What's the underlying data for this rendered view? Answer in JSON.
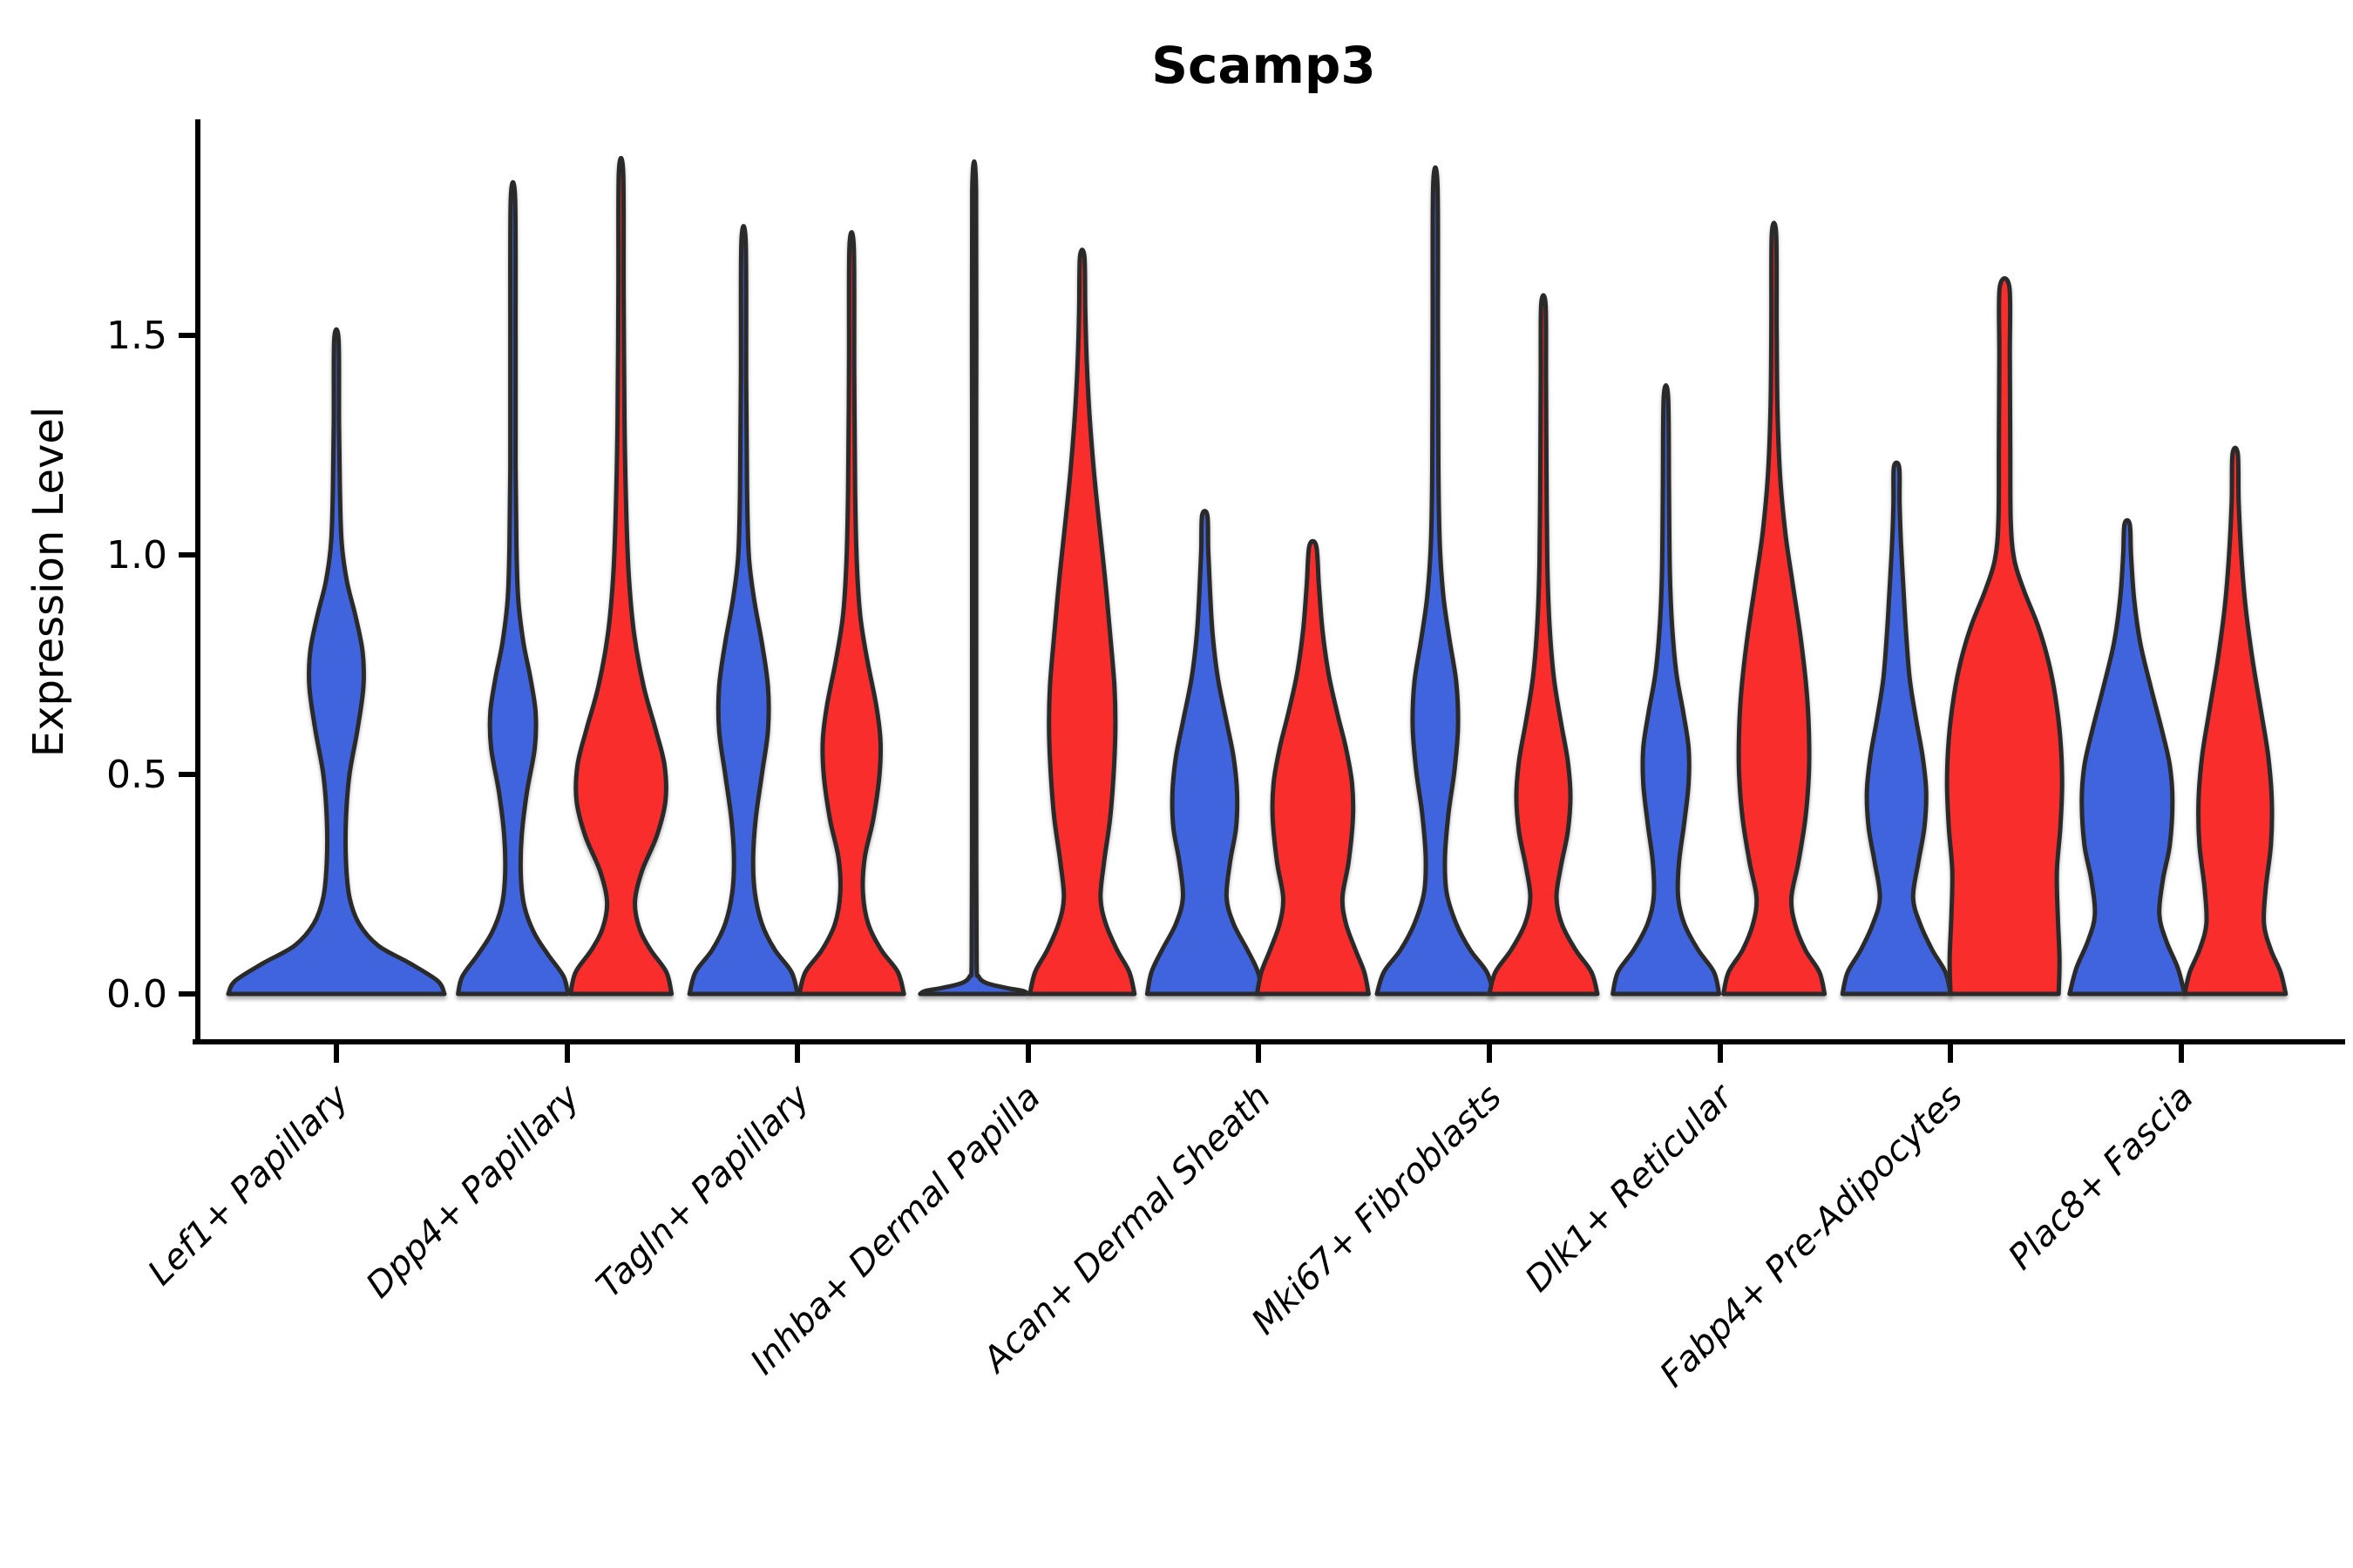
{
  "chart_data": {
    "type": "violin",
    "title": "Scamp3",
    "ylabel": "Expression Level",
    "xlabel": "",
    "ytick_labels": [
      "0.0",
      "0.5",
      "1.0",
      "1.5"
    ],
    "ytick_values": [
      0.0,
      0.5,
      1.0,
      1.5
    ],
    "ylim": [
      -0.11,
      1.99
    ],
    "grid": false,
    "legend": "none",
    "categories": [
      "Lef1+ Papillary",
      "Dpp4+ Papillary",
      "Tagln+ Papillary",
      "Inhba+ Dermal Papilla",
      "Acan+ Dermal Sheath",
      "Mki67+ Fibroblasts",
      "Dlk1+ Reticular",
      "Fabp4+ Pre-Adipocytes",
      "Plac8+ Fascia"
    ],
    "colors": {
      "blue": "#4064DE",
      "red": "#FA2D2D",
      "outline": "#2A2A2A",
      "axis": "#000000"
    },
    "violins": [
      {
        "category": "Lef1+ Papillary",
        "group_index": 0,
        "side": "center",
        "color": "blue",
        "max_expression": 1.49,
        "profile": [
          [
            0,
            124
          ],
          [
            0.03,
            116
          ],
          [
            0.07,
            84
          ],
          [
            0.11,
            48
          ],
          [
            0.16,
            26
          ],
          [
            0.22,
            15
          ],
          [
            0.3,
            11
          ],
          [
            0.4,
            11
          ],
          [
            0.5,
            15
          ],
          [
            0.6,
            24
          ],
          [
            0.7,
            31
          ],
          [
            0.78,
            30
          ],
          [
            0.86,
            22
          ],
          [
            0.94,
            12
          ],
          [
            1.03,
            6
          ],
          [
            1.15,
            4
          ],
          [
            1.3,
            3
          ],
          [
            1.49,
            2.5
          ]
        ]
      },
      {
        "category": "Dpp4+ Papillary",
        "group_index": 1,
        "side": "left",
        "color": "blue",
        "max_expression": 1.81,
        "profile": [
          [
            0,
            63
          ],
          [
            0.04,
            58
          ],
          [
            0.09,
            40
          ],
          [
            0.14,
            24
          ],
          [
            0.2,
            13
          ],
          [
            0.27,
            9
          ],
          [
            0.36,
            10
          ],
          [
            0.46,
            16
          ],
          [
            0.56,
            25
          ],
          [
            0.64,
            26
          ],
          [
            0.72,
            20
          ],
          [
            0.8,
            12
          ],
          [
            0.9,
            6
          ],
          [
            1.02,
            4
          ],
          [
            1.2,
            3
          ],
          [
            1.5,
            3
          ],
          [
            1.81,
            2.5
          ]
        ]
      },
      {
        "category": "Dpp4+ Papillary",
        "group_index": 1,
        "side": "right",
        "color": "red",
        "max_expression": 1.87,
        "profile": [
          [
            0,
            58
          ],
          [
            0.05,
            52
          ],
          [
            0.1,
            34
          ],
          [
            0.15,
            21
          ],
          [
            0.21,
            16
          ],
          [
            0.28,
            24
          ],
          [
            0.36,
            41
          ],
          [
            0.44,
            51
          ],
          [
            0.52,
            50
          ],
          [
            0.6,
            40
          ],
          [
            0.7,
            26
          ],
          [
            0.82,
            15
          ],
          [
            0.95,
            9
          ],
          [
            1.1,
            6
          ],
          [
            1.3,
            4
          ],
          [
            1.6,
            3
          ],
          [
            1.87,
            2.5
          ]
        ]
      },
      {
        "category": "Tagln+ Papillary",
        "group_index": 2,
        "side": "left",
        "color": "blue",
        "max_expression": 1.71,
        "profile": [
          [
            0,
            62
          ],
          [
            0.05,
            55
          ],
          [
            0.1,
            36
          ],
          [
            0.16,
            21
          ],
          [
            0.23,
            13
          ],
          [
            0.31,
            11
          ],
          [
            0.4,
            14
          ],
          [
            0.5,
            21
          ],
          [
            0.6,
            28
          ],
          [
            0.7,
            28
          ],
          [
            0.8,
            21
          ],
          [
            0.9,
            12
          ],
          [
            1.0,
            6
          ],
          [
            1.15,
            4
          ],
          [
            1.4,
            3
          ],
          [
            1.71,
            2.5
          ]
        ]
      },
      {
        "category": "Tagln+ Papillary",
        "group_index": 2,
        "side": "right",
        "color": "red",
        "max_expression": 1.7,
        "profile": [
          [
            0,
            60
          ],
          [
            0.05,
            53
          ],
          [
            0.1,
            34
          ],
          [
            0.16,
            19
          ],
          [
            0.23,
            13
          ],
          [
            0.31,
            15
          ],
          [
            0.4,
            25
          ],
          [
            0.5,
            32
          ],
          [
            0.58,
            33
          ],
          [
            0.66,
            28
          ],
          [
            0.76,
            18
          ],
          [
            0.86,
            10
          ],
          [
            0.98,
            6
          ],
          [
            1.15,
            4
          ],
          [
            1.42,
            3
          ],
          [
            1.7,
            2.5
          ]
        ]
      },
      {
        "category": "Inhba+ Dermal Papilla",
        "group_index": 3,
        "side": "left",
        "color": "blue",
        "max_expression": 1.83,
        "profile": [
          [
            0,
            62
          ],
          [
            0.007,
            56
          ],
          [
            0.014,
            36
          ],
          [
            0.025,
            14
          ],
          [
            0.04,
            5
          ],
          [
            0.07,
            2.8
          ],
          [
            0.3,
            2.4
          ],
          [
            0.8,
            2.3
          ],
          [
            1.3,
            2.3
          ],
          [
            1.83,
            2.2
          ]
        ]
      },
      {
        "category": "Inhba+ Dermal Papilla",
        "group_index": 3,
        "side": "right",
        "color": "red",
        "max_expression": 1.68,
        "profile": [
          [
            0,
            60
          ],
          [
            0.05,
            54
          ],
          [
            0.1,
            40
          ],
          [
            0.16,
            27
          ],
          [
            0.22,
            21
          ],
          [
            0.3,
            25
          ],
          [
            0.4,
            32
          ],
          [
            0.5,
            36
          ],
          [
            0.6,
            38
          ],
          [
            0.7,
            37
          ],
          [
            0.82,
            32
          ],
          [
            0.95,
            26
          ],
          [
            1.08,
            19
          ],
          [
            1.2,
            13
          ],
          [
            1.33,
            8
          ],
          [
            1.45,
            5
          ],
          [
            1.56,
            3.5
          ],
          [
            1.68,
            2.5
          ]
        ]
      },
      {
        "category": "Acan+ Dermal Sheath",
        "group_index": 4,
        "side": "left",
        "color": "blue",
        "max_expression": 1.09,
        "profile": [
          [
            0,
            66
          ],
          [
            0.05,
            61
          ],
          [
            0.1,
            49
          ],
          [
            0.16,
            33
          ],
          [
            0.22,
            25
          ],
          [
            0.3,
            29
          ],
          [
            0.38,
            36
          ],
          [
            0.46,
            37
          ],
          [
            0.54,
            33
          ],
          [
            0.62,
            25
          ],
          [
            0.72,
            15
          ],
          [
            0.82,
            9
          ],
          [
            0.92,
            6
          ],
          [
            1.01,
            4
          ],
          [
            1.09,
            3
          ]
        ]
      },
      {
        "category": "Acan+ Dermal Sheath",
        "group_index": 4,
        "side": "right",
        "color": "red",
        "max_expression": 1.02,
        "profile": [
          [
            0,
            64
          ],
          [
            0.05,
            59
          ],
          [
            0.1,
            49
          ],
          [
            0.16,
            38
          ],
          [
            0.22,
            34
          ],
          [
            0.3,
            41
          ],
          [
            0.4,
            46
          ],
          [
            0.48,
            45
          ],
          [
            0.56,
            38
          ],
          [
            0.64,
            28
          ],
          [
            0.73,
            18
          ],
          [
            0.83,
            11
          ],
          [
            0.93,
            7
          ],
          [
            1.02,
            4
          ]
        ]
      },
      {
        "category": "Mki67+ Fibroblasts",
        "group_index": 5,
        "side": "left",
        "color": "blue",
        "max_expression": 1.84,
        "profile": [
          [
            0,
            67
          ],
          [
            0.05,
            59
          ],
          [
            0.1,
            40
          ],
          [
            0.16,
            24
          ],
          [
            0.23,
            13
          ],
          [
            0.31,
            11
          ],
          [
            0.41,
            15
          ],
          [
            0.51,
            22
          ],
          [
            0.61,
            26
          ],
          [
            0.71,
            24
          ],
          [
            0.81,
            16
          ],
          [
            0.91,
            9
          ],
          [
            1.03,
            5
          ],
          [
            1.2,
            3.5
          ],
          [
            1.5,
            3
          ],
          [
            1.84,
            2.5
          ]
        ]
      },
      {
        "category": "Mki67+ Fibroblasts",
        "group_index": 5,
        "side": "right",
        "color": "red",
        "max_expression": 1.57,
        "profile": [
          [
            0,
            62
          ],
          [
            0.05,
            55
          ],
          [
            0.1,
            37
          ],
          [
            0.16,
            21
          ],
          [
            0.22,
            15
          ],
          [
            0.29,
            20
          ],
          [
            0.37,
            28
          ],
          [
            0.45,
            31
          ],
          [
            0.53,
            28
          ],
          [
            0.62,
            20
          ],
          [
            0.72,
            12
          ],
          [
            0.84,
            7
          ],
          [
            0.98,
            4.5
          ],
          [
            1.2,
            3.5
          ],
          [
            1.4,
            3
          ],
          [
            1.57,
            2.5
          ]
        ]
      },
      {
        "category": "Dlk1+ Reticular",
        "group_index": 6,
        "side": "left",
        "color": "blue",
        "max_expression": 1.36,
        "profile": [
          [
            0,
            61
          ],
          [
            0.05,
            55
          ],
          [
            0.1,
            37
          ],
          [
            0.16,
            21
          ],
          [
            0.22,
            14
          ],
          [
            0.3,
            15
          ],
          [
            0.39,
            21
          ],
          [
            0.48,
            26
          ],
          [
            0.56,
            26
          ],
          [
            0.64,
            20
          ],
          [
            0.73,
            12
          ],
          [
            0.84,
            7
          ],
          [
            0.96,
            4.5
          ],
          [
            1.15,
            3.5
          ],
          [
            1.36,
            2.5
          ]
        ]
      },
      {
        "category": "Dlk1+ Reticular",
        "group_index": 6,
        "side": "right",
        "color": "red",
        "max_expression": 1.73,
        "profile": [
          [
            0,
            58
          ],
          [
            0.05,
            52
          ],
          [
            0.1,
            36
          ],
          [
            0.16,
            24
          ],
          [
            0.22,
            20
          ],
          [
            0.3,
            28
          ],
          [
            0.4,
            36
          ],
          [
            0.5,
            40
          ],
          [
            0.6,
            40
          ],
          [
            0.7,
            37
          ],
          [
            0.82,
            30
          ],
          [
            0.94,
            21
          ],
          [
            1.05,
            13
          ],
          [
            1.18,
            7
          ],
          [
            1.33,
            4
          ],
          [
            1.52,
            3
          ],
          [
            1.73,
            2.5
          ]
        ]
      },
      {
        "category": "Fabp4+ Pre-Adipocytes",
        "group_index": 7,
        "side": "left",
        "color": "blue",
        "max_expression": 1.2,
        "profile": [
          [
            0,
            62
          ],
          [
            0.05,
            56
          ],
          [
            0.1,
            41
          ],
          [
            0.16,
            27
          ],
          [
            0.22,
            19
          ],
          [
            0.3,
            25
          ],
          [
            0.38,
            32
          ],
          [
            0.46,
            34
          ],
          [
            0.54,
            30
          ],
          [
            0.63,
            22
          ],
          [
            0.72,
            15
          ],
          [
            0.82,
            11
          ],
          [
            0.92,
            8
          ],
          [
            1.03,
            5
          ],
          [
            1.12,
            3.5
          ],
          [
            1.2,
            3
          ]
        ]
      },
      {
        "category": "Fabp4+ Pre-Adipocytes",
        "group_index": 7,
        "side": "right",
        "color": "red",
        "max_expression": 1.61,
        "profile": [
          [
            0,
            62
          ],
          [
            0.08,
            63
          ],
          [
            0.18,
            61
          ],
          [
            0.28,
            60
          ],
          [
            0.38,
            64
          ],
          [
            0.48,
            66
          ],
          [
            0.58,
            64
          ],
          [
            0.68,
            58
          ],
          [
            0.76,
            50
          ],
          [
            0.84,
            38
          ],
          [
            0.92,
            22
          ],
          [
            0.99,
            11
          ],
          [
            1.08,
            7
          ],
          [
            1.25,
            6.5
          ],
          [
            1.45,
            6
          ],
          [
            1.61,
            5.5
          ]
        ]
      },
      {
        "category": "Plac8+ Fascia",
        "group_index": 8,
        "side": "left",
        "color": "blue",
        "max_expression": 1.07,
        "profile": [
          [
            0,
            66
          ],
          [
            0.06,
            58
          ],
          [
            0.12,
            45
          ],
          [
            0.18,
            37
          ],
          [
            0.26,
            41
          ],
          [
            0.34,
            49
          ],
          [
            0.44,
            52
          ],
          [
            0.52,
            49
          ],
          [
            0.6,
            40
          ],
          [
            0.7,
            27
          ],
          [
            0.8,
            15
          ],
          [
            0.9,
            8
          ],
          [
            1.0,
            4.5
          ],
          [
            1.07,
            3
          ]
        ]
      },
      {
        "category": "Plac8+ Fascia",
        "group_index": 8,
        "side": "right",
        "color": "red",
        "max_expression": 1.23,
        "profile": [
          [
            0,
            58
          ],
          [
            0.05,
            52
          ],
          [
            0.1,
            41
          ],
          [
            0.16,
            33
          ],
          [
            0.24,
            35
          ],
          [
            0.34,
            41
          ],
          [
            0.44,
            42
          ],
          [
            0.54,
            38
          ],
          [
            0.64,
            30
          ],
          [
            0.76,
            20
          ],
          [
            0.88,
            12
          ],
          [
            1.0,
            7
          ],
          [
            1.12,
            4
          ],
          [
            1.23,
            3
          ]
        ]
      }
    ]
  }
}
